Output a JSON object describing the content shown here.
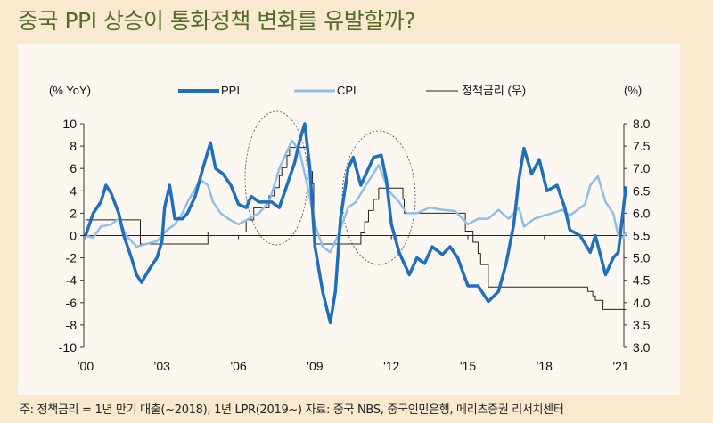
{
  "title": "중국 PPI 상승이 통화정책 변화를 유발할까?",
  "note": "주: 정책금리 = 1년 만기 대출(~2018), 1년 LPR(2019~) 자료: 중국 NBS, 중국인민은행, 메리츠증권 리서치센터",
  "chart_data": {
    "type": "line",
    "ylabel": "(% YoY)",
    "y2label": "(%)",
    "ylim": [
      -10,
      10
    ],
    "y2lim": [
      3.0,
      8.0
    ],
    "yticks": [
      "10",
      "8",
      "6",
      "4",
      "2",
      "0",
      "-2",
      "-4",
      "-6",
      "-8",
      "-10"
    ],
    "y2ticks": [
      "8.0",
      "7.5",
      "7.0",
      "6.5",
      "6.0",
      "5.5",
      "5.0",
      "4.5",
      "4.0",
      "3.5",
      "3.0"
    ],
    "xticks": [
      "'00",
      "'03",
      "'06",
      "'09",
      "'12",
      "'15",
      "'18",
      "'21"
    ],
    "xtick_years": [
      2000,
      2003,
      2006,
      2009,
      2012,
      2015,
      2018,
      2021
    ],
    "xlim": [
      2000,
      2021.3
    ],
    "legend": "top",
    "colors": {
      "PPI": "#1f6fbf",
      "CPI": "#8fbfe8",
      "rate": "#222222"
    },
    "series": [
      {
        "name": "PPI",
        "axis": "left",
        "x": [
          2000.0,
          2000.3,
          2000.6,
          2000.8,
          2001.0,
          2001.3,
          2001.5,
          2001.8,
          2002.0,
          2002.2,
          2002.5,
          2002.8,
          2003.0,
          2003.1,
          2003.3,
          2003.5,
          2003.8,
          2004.0,
          2004.3,
          2004.6,
          2004.9,
          2005.1,
          2005.4,
          2005.7,
          2006.0,
          2006.3,
          2006.5,
          2006.8,
          2007.0,
          2007.3,
          2007.6,
          2007.9,
          2008.2,
          2008.4,
          2008.6,
          2008.8,
          2009.0,
          2009.3,
          2009.6,
          2009.8,
          2010.0,
          2010.3,
          2010.5,
          2010.8,
          2011.0,
          2011.3,
          2011.6,
          2011.8,
          2012.0,
          2012.3,
          2012.7,
          2013.0,
          2013.3,
          2013.6,
          2014.0,
          2014.3,
          2014.6,
          2015.0,
          2015.4,
          2015.8,
          2016.2,
          2016.5,
          2016.8,
          2017.0,
          2017.2,
          2017.5,
          2017.8,
          2018.1,
          2018.5,
          2018.8,
          2019.0,
          2019.4,
          2019.8,
          2020.0,
          2020.4,
          2020.7,
          2020.9,
          2021.2
        ],
        "values": [
          0,
          2,
          3,
          4.5,
          3.8,
          2,
          0,
          -2,
          -3.5,
          -4.2,
          -3,
          -2,
          -0.5,
          2.5,
          4.5,
          1.5,
          1.5,
          2,
          3.5,
          6,
          8.3,
          6,
          5.5,
          4.5,
          2.8,
          2.5,
          3.5,
          3,
          3,
          3,
          2.5,
          4.5,
          6.5,
          8.5,
          10,
          6,
          -1,
          -5,
          -7.8,
          -5,
          1.5,
          6,
          7,
          4.5,
          5.5,
          7,
          7.2,
          5,
          1,
          -1.5,
          -3.5,
          -2,
          -2.5,
          -1,
          -1.7,
          -1,
          -2,
          -4.5,
          -4.5,
          -5.9,
          -5,
          -2.5,
          1,
          5,
          7.8,
          5.5,
          6.8,
          4,
          4.5,
          2.5,
          0.5,
          0,
          -1.5,
          0,
          -3.5,
          -2,
          -1.5,
          4.4
        ]
      },
      {
        "name": "CPI",
        "axis": "left",
        "x": [
          2000.0,
          2000.3,
          2000.6,
          2001.0,
          2001.3,
          2001.6,
          2002.0,
          2002.3,
          2002.8,
          2003.2,
          2003.5,
          2003.8,
          2004.0,
          2004.5,
          2004.8,
          2005.0,
          2005.3,
          2005.6,
          2006.0,
          2006.4,
          2006.8,
          2007.2,
          2007.6,
          2008.1,
          2008.4,
          2008.7,
          2009.0,
          2009.3,
          2009.6,
          2009.9,
          2010.3,
          2010.6,
          2011.0,
          2011.5,
          2011.9,
          2012.3,
          2012.6,
          2013.0,
          2013.5,
          2014.0,
          2014.5,
          2015.0,
          2015.4,
          2015.8,
          2016.2,
          2016.6,
          2017.0,
          2017.2,
          2017.6,
          2018.0,
          2018.3,
          2018.7,
          2019.0,
          2019.3,
          2019.6,
          2019.8,
          2020.1,
          2020.4,
          2020.7,
          2020.9,
          2021.1,
          2021.2
        ],
        "values": [
          0,
          -0.2,
          0.8,
          1,
          1.5,
          0,
          -1,
          -0.8,
          -0.5,
          0.5,
          1,
          2,
          3,
          5,
          4.5,
          3,
          2,
          1.5,
          1,
          1.5,
          2,
          3,
          6,
          8.5,
          7.5,
          4.5,
          1,
          -1,
          -1.5,
          0,
          2.5,
          3,
          4.5,
          6.3,
          4,
          3,
          2,
          2,
          2.5,
          2.3,
          2.2,
          1,
          1.5,
          1.5,
          2.3,
          1.5,
          2.5,
          0.8,
          1.5,
          1.8,
          2,
          2.3,
          1.8,
          2.3,
          2.8,
          4.5,
          5.3,
          3,
          2,
          0,
          -0.2,
          0.3
        ]
      },
      {
        "name": "정책금리 (우)",
        "axis": "right",
        "step": true,
        "x": [
          2000.0,
          2002.15,
          2004.8,
          2006.3,
          2006.6,
          2007.2,
          2007.4,
          2007.6,
          2007.7,
          2007.9,
          2008.0,
          2008.7,
          2008.8,
          2008.9,
          2008.95,
          2009.0,
          2010.8,
          2010.95,
          2011.1,
          2011.3,
          2011.5,
          2012.45,
          2012.5,
          2014.9,
          2015.2,
          2015.4,
          2015.5,
          2015.8,
          2019.7,
          2019.9,
          2020.0,
          2020.3,
          2021.2
        ],
        "values": [
          5.85,
          5.31,
          5.58,
          5.85,
          6.12,
          6.39,
          6.57,
          6.84,
          7.02,
          7.29,
          7.47,
          7.2,
          6.93,
          6.66,
          5.58,
          5.31,
          5.56,
          5.81,
          6.06,
          6.31,
          6.56,
          6.31,
          6.0,
          5.6,
          5.35,
          5.1,
          4.85,
          4.35,
          4.25,
          4.15,
          4.05,
          3.85,
          3.85
        ]
      }
    ]
  }
}
